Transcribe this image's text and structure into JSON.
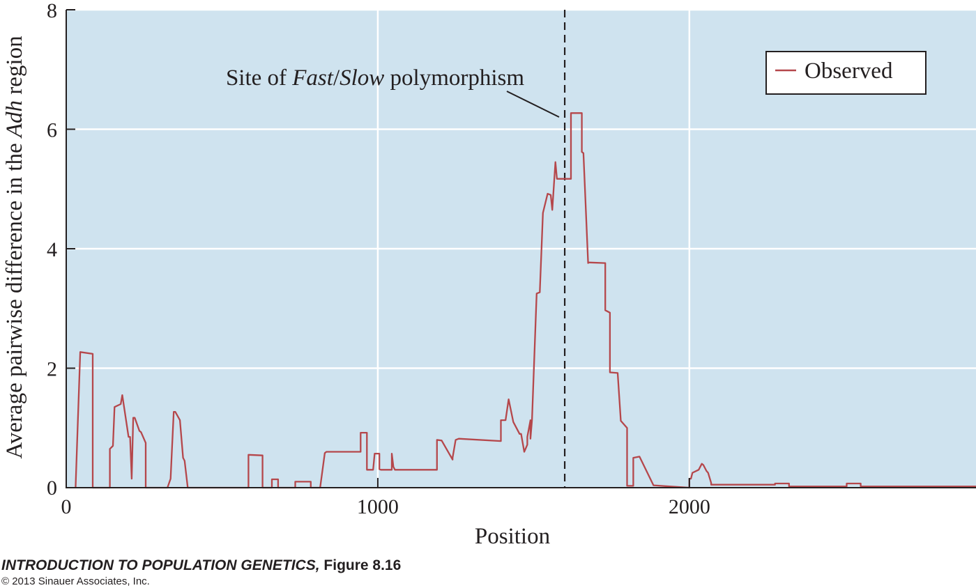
{
  "chart_data": {
    "type": "line",
    "xlabel": "Position",
    "ylabel_parts": [
      "Average pairwise difference in the ",
      "Adh",
      " region"
    ],
    "xlim": [
      0,
      2920
    ],
    "ylim": [
      0,
      8
    ],
    "xticks": [
      0,
      1000,
      2000
    ],
    "yticks": [
      0,
      2,
      4,
      6,
      8
    ],
    "xtick_labels": [
      "0",
      "1000",
      "2000"
    ],
    "ytick_labels": [
      "0",
      "2",
      "4",
      "6",
      "8"
    ],
    "grid": true,
    "legend_position": "top-right",
    "colors": {
      "background": "#cfe3ef",
      "series": "#b5474b",
      "grid": "#ffffff",
      "axis": "#231f20"
    },
    "series": [
      {
        "name": "Observed",
        "x": [
          30,
          45,
          85,
          85,
          140,
          140,
          150,
          155,
          175,
          180,
          200,
          205,
          210,
          215,
          220,
          235,
          240,
          255,
          255,
          325,
          335,
          345,
          350,
          365,
          375,
          380,
          390,
          390,
          585,
          585,
          630,
          630,
          660,
          660,
          680,
          680,
          735,
          735,
          785,
          785,
          815,
          830,
          835,
          945,
          945,
          965,
          965,
          985,
          990,
          1005,
          1005,
          1010,
          1045,
          1045,
          1050,
          1055,
          1190,
          1190,
          1205,
          1240,
          1240,
          1250,
          1260,
          1395,
          1395,
          1410,
          1420,
          1435,
          1455,
          1460,
          1470,
          1480,
          1480,
          1490,
          1490,
          1495,
          1510,
          1520,
          1530,
          1545,
          1545,
          1555,
          1560,
          1570,
          1575,
          1620,
          1620,
          1655,
          1655,
          1660,
          1675,
          1675,
          1730,
          1730,
          1745,
          1745,
          1770,
          1780,
          1800,
          1800,
          1810,
          1820,
          1820,
          1840,
          1840,
          1885,
          1885,
          1940,
          2000,
          2000,
          2005,
          2010,
          2030,
          2040,
          2045,
          2055,
          2060,
          2070,
          2070,
          2275,
          2275,
          2320,
          2320,
          2505,
          2505,
          2550,
          2550,
          2600,
          2920
        ],
        "y": [
          0,
          2.27,
          2.24,
          0,
          0,
          0.65,
          0.7,
          1.35,
          1.4,
          1.55,
          0.85,
          0.85,
          0.15,
          1.17,
          1.17,
          0.95,
          0.93,
          0.75,
          0,
          0,
          0.15,
          1.27,
          1.27,
          1.13,
          0.5,
          0.45,
          0,
          0,
          0,
          0.55,
          0.54,
          0,
          0,
          0.14,
          0.14,
          0,
          0,
          0.1,
          0.1,
          0,
          0,
          0.58,
          0.6,
          0.6,
          0.92,
          0.92,
          0.3,
          0.3,
          0.57,
          0.57,
          0.31,
          0.3,
          0.3,
          0.57,
          0.35,
          0.3,
          0.3,
          0.8,
          0.79,
          0.47,
          0.5,
          0.8,
          0.82,
          0.78,
          1.13,
          1.13,
          1.48,
          1.1,
          0.9,
          0.9,
          0.6,
          0.72,
          0.85,
          1.13,
          0.82,
          1.13,
          3.25,
          3.27,
          4.6,
          4.92,
          4.92,
          4.9,
          4.65,
          5.45,
          5.17,
          5.17,
          6.27,
          6.27,
          5.62,
          5.6,
          3.76,
          3.77,
          3.76,
          2.97,
          2.93,
          1.93,
          1.92,
          1.12,
          1.0,
          0.03,
          0.03,
          0.03,
          0.5,
          0.52,
          0.52,
          0.04,
          0.04,
          0.02,
          0,
          0.15,
          0.15,
          0.25,
          0.3,
          0.4,
          0.38,
          0.28,
          0.25,
          0.08,
          0.05,
          0.05,
          0.07,
          0.07,
          0.02,
          0.02,
          0.07,
          0.07,
          0.02,
          0.02,
          0.02
        ]
      }
    ],
    "annotations": [
      {
        "x": 1600,
        "parts": [
          "Site of ",
          "Fast",
          "/",
          "Slow",
          " polymorphism"
        ]
      }
    ]
  },
  "caption": {
    "title": "INTRODUCTION TO POPULATION GENETICS,",
    "figure": " Figure 8.16",
    "copyright": "© 2013 Sinauer Associates, Inc."
  }
}
